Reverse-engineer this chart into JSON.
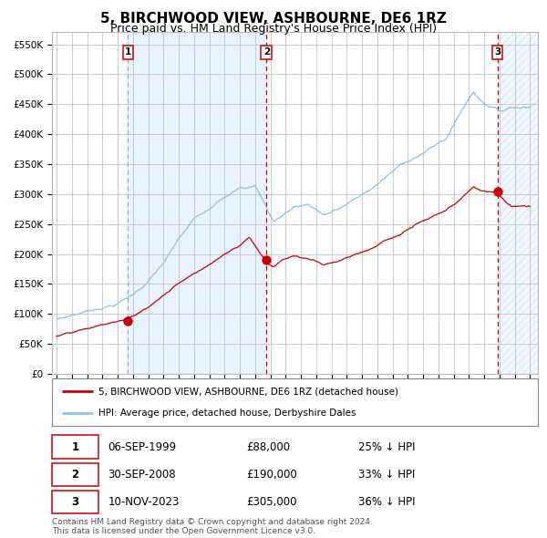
{
  "title": "5, BIRCHWOOD VIEW, ASHBOURNE, DE6 1RZ",
  "subtitle": "Price paid vs. HM Land Registry's House Price Index (HPI)",
  "title_fontsize": 11,
  "subtitle_fontsize": 9,
  "ylabel_ticks": [
    "£0",
    "£50K",
    "£100K",
    "£150K",
    "£200K",
    "£250K",
    "£300K",
    "£350K",
    "£400K",
    "£450K",
    "£500K",
    "£550K"
  ],
  "ytick_values": [
    0,
    50000,
    100000,
    150000,
    200000,
    250000,
    300000,
    350000,
    400000,
    450000,
    500000,
    550000
  ],
  "ylim": [
    0,
    570000
  ],
  "xlim_start": 1994.7,
  "xlim_end": 2026.5,
  "x_tick_years": [
    1995,
    1996,
    1997,
    1998,
    1999,
    2000,
    2001,
    2002,
    2003,
    2004,
    2005,
    2006,
    2007,
    2008,
    2009,
    2010,
    2011,
    2012,
    2013,
    2014,
    2015,
    2016,
    2017,
    2018,
    2019,
    2020,
    2021,
    2022,
    2023,
    2024,
    2025,
    2026
  ],
  "sale1_date": 1999.68,
  "sale1_price": 88000,
  "sale2_date": 2008.75,
  "sale2_price": 190000,
  "sale3_date": 2023.86,
  "sale3_price": 305000,
  "hpi_color": "#92c0dd",
  "price_color": "#cc0000",
  "dot_color": "#cc0000",
  "vline1_color": "#aaaaaa",
  "vline23_color": "#cc0000",
  "bg_shade_color": "#ddeeff",
  "grid_color": "#bbbbbb",
  "legend_label_price": "5, BIRCHWOOD VIEW, ASHBOURNE, DE6 1RZ (detached house)",
  "legend_label_hpi": "HPI: Average price, detached house, Derbyshire Dales",
  "table_rows": [
    [
      "1",
      "06-SEP-1999",
      "£88,000",
      "25% ↓ HPI"
    ],
    [
      "2",
      "30-SEP-2008",
      "£190,000",
      "33% ↓ HPI"
    ],
    [
      "3",
      "10-NOV-2023",
      "£305,000",
      "36% ↓ HPI"
    ]
  ],
  "footer_text": "Contains HM Land Registry data © Crown copyright and database right 2024.\nThis data is licensed under the Open Government Licence v3.0.",
  "font_family": "DejaVu Sans"
}
